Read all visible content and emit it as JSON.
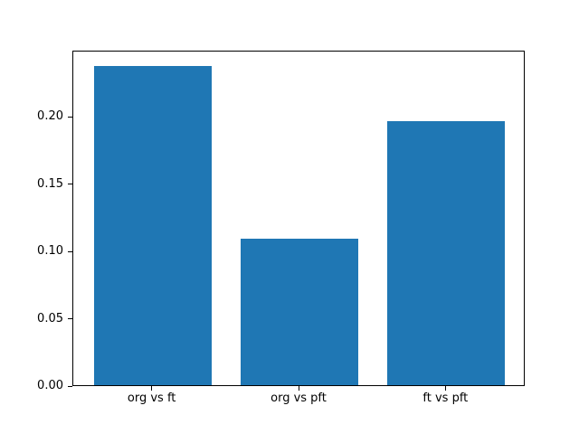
{
  "figure": {
    "background": "#ffffff"
  },
  "chart_data": {
    "type": "bar",
    "categories": [
      "org vs ft",
      "org vs pft",
      "ft vs pft"
    ],
    "values": [
      0.237,
      0.109,
      0.196
    ],
    "title": "",
    "xlabel": "",
    "ylabel": "",
    "ylim": [
      0,
      0.249
    ],
    "xlim": [
      -0.54,
      2.54
    ],
    "yticks": [
      0.0,
      0.05,
      0.1,
      0.15,
      0.2
    ],
    "ytick_format_decimals": 2,
    "bar_width": 0.8,
    "bar_color": "#1f77b4",
    "axis_color": "#000000",
    "grid": false,
    "legend": false
  }
}
